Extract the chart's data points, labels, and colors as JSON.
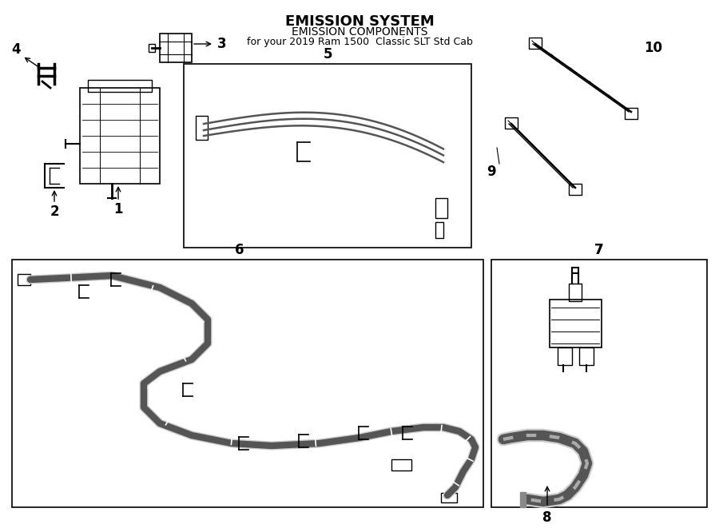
{
  "title": "EMISSION SYSTEM",
  "subtitle": "EMISSION COMPONENTS",
  "vehicle": "for your 2019 Ram 1500  Classic SLT Std Cab",
  "background_color": "#ffffff",
  "line_color": "#000000",
  "box_color": "#000000",
  "label_color": "#000000",
  "component_line_color": "#555555",
  "shaded_line_color": "#888888",
  "figure_width": 9.0,
  "figure_height": 6.61,
  "dpi": 100
}
